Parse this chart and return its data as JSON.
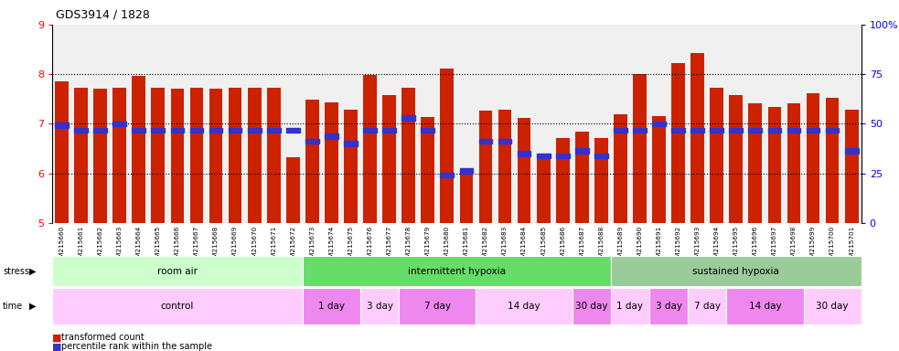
{
  "title": "GDS3914 / 1828",
  "bar_bottom": 5,
  "ylim": [
    5,
    9
  ],
  "right_ylim": [
    0,
    100
  ],
  "right_yticks": [
    0,
    25,
    50,
    75,
    100
  ],
  "right_yticklabels": [
    "0",
    "25",
    "50",
    "75",
    "100%"
  ],
  "left_yticks": [
    5,
    6,
    7,
    8,
    9
  ],
  "dotted_lines": [
    6,
    7,
    8
  ],
  "bar_color": "#cc2200",
  "dot_color": "#3333cc",
  "bg_color": "#f0f0f0",
  "samples": [
    "GSM215660",
    "GSM215661",
    "GSM215662",
    "GSM215663",
    "GSM215664",
    "GSM215665",
    "GSM215666",
    "GSM215667",
    "GSM215668",
    "GSM215669",
    "GSM215670",
    "GSM215671",
    "GSM215672",
    "GSM215673",
    "GSM215674",
    "GSM215675",
    "GSM215676",
    "GSM215677",
    "GSM215678",
    "GSM215679",
    "GSM215680",
    "GSM215681",
    "GSM215682",
    "GSM215683",
    "GSM215684",
    "GSM215685",
    "GSM215686",
    "GSM215687",
    "GSM215688",
    "GSM215689",
    "GSM215690",
    "GSM215691",
    "GSM215692",
    "GSM215693",
    "GSM215694",
    "GSM215695",
    "GSM215696",
    "GSM215697",
    "GSM215698",
    "GSM215699",
    "GSM215700",
    "GSM215701"
  ],
  "bar_heights": [
    7.85,
    7.73,
    7.71,
    7.73,
    7.97,
    7.73,
    7.71,
    7.73,
    7.71,
    7.73,
    7.73,
    7.73,
    6.32,
    7.49,
    7.43,
    7.28,
    7.99,
    7.57,
    7.73,
    7.14,
    8.12,
    5.97,
    7.27,
    7.28,
    7.12,
    6.36,
    6.72,
    6.84,
    6.72,
    7.2,
    8.0,
    7.15,
    8.22,
    8.42,
    7.72,
    7.57,
    7.42,
    7.34,
    7.42,
    7.62,
    7.52,
    7.28
  ],
  "dot_positions": [
    6.97,
    6.87,
    6.87,
    7.0,
    6.87,
    6.87,
    6.87,
    6.87,
    6.87,
    6.87,
    6.87,
    6.87,
    6.87,
    6.65,
    6.75,
    6.6,
    6.87,
    6.87,
    7.12,
    6.87,
    5.97,
    6.05,
    6.65,
    6.65,
    6.4,
    6.35,
    6.35,
    6.45,
    6.35,
    6.87,
    6.87,
    7.0,
    6.87,
    6.87,
    6.87,
    6.87,
    6.87,
    6.87,
    6.87,
    6.87,
    6.87,
    6.45
  ],
  "stress_groups": [
    {
      "label": "room air",
      "start": 0,
      "end": 13,
      "color": "#ccffcc"
    },
    {
      "label": "intermittent hypoxia",
      "start": 13,
      "end": 29,
      "color": "#66dd66"
    },
    {
      "label": "sustained hypoxia",
      "start": 29,
      "end": 42,
      "color": "#99cc99"
    }
  ],
  "time_groups": [
    {
      "label": "control",
      "start": 0,
      "end": 13,
      "color": "#ffccff"
    },
    {
      "label": "1 day",
      "start": 13,
      "end": 16,
      "color": "#ee88ee"
    },
    {
      "label": "3 day",
      "start": 16,
      "end": 18,
      "color": "#ffccff"
    },
    {
      "label": "7 day",
      "start": 18,
      "end": 22,
      "color": "#ee88ee"
    },
    {
      "label": "14 day",
      "start": 22,
      "end": 27,
      "color": "#ffccff"
    },
    {
      "label": "30 day",
      "start": 27,
      "end": 29,
      "color": "#ee88ee"
    },
    {
      "label": "1 day",
      "start": 29,
      "end": 31,
      "color": "#ffccff"
    },
    {
      "label": "3 day",
      "start": 31,
      "end": 33,
      "color": "#ee88ee"
    },
    {
      "label": "7 day",
      "start": 33,
      "end": 35,
      "color": "#ffccff"
    },
    {
      "label": "14 day",
      "start": 35,
      "end": 39,
      "color": "#ee88ee"
    },
    {
      "label": "30 day",
      "start": 39,
      "end": 42,
      "color": "#ffccff"
    }
  ]
}
